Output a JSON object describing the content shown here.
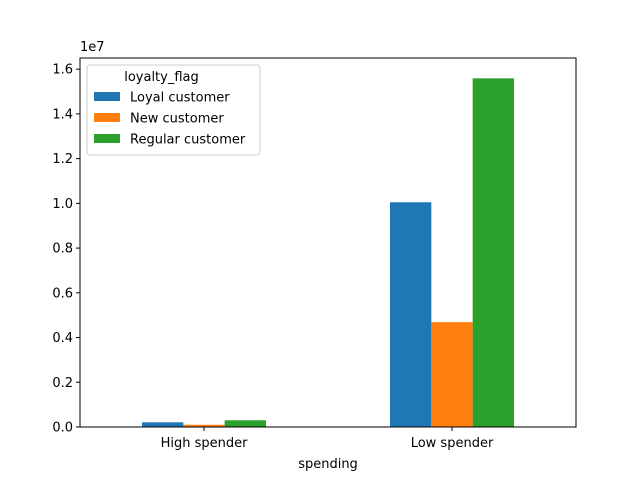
{
  "chart_data": {
    "type": "bar",
    "xlabel": "spending",
    "ylabel": "",
    "y_offset_label": "1e7",
    "categories": [
      "High spender",
      "Low spender"
    ],
    "series": [
      {
        "name": "Loyal customer",
        "color": "#1f77b4",
        "values": [
          0.021,
          1.005
        ]
      },
      {
        "name": "New customer",
        "color": "#ff7f0e",
        "values": [
          0.01,
          0.469
        ]
      },
      {
        "name": "Regular customer",
        "color": "#2ca02c",
        "values": [
          0.03,
          1.559
        ]
      }
    ],
    "ylim": [
      0,
      1.65
    ],
    "yticks": [
      "0.0",
      "0.2",
      "0.4",
      "0.6",
      "0.8",
      "1.0",
      "1.2",
      "1.4",
      "1.6"
    ],
    "legend": {
      "title": "loyalty_flag",
      "placement": "top-left"
    },
    "grid": false
  }
}
